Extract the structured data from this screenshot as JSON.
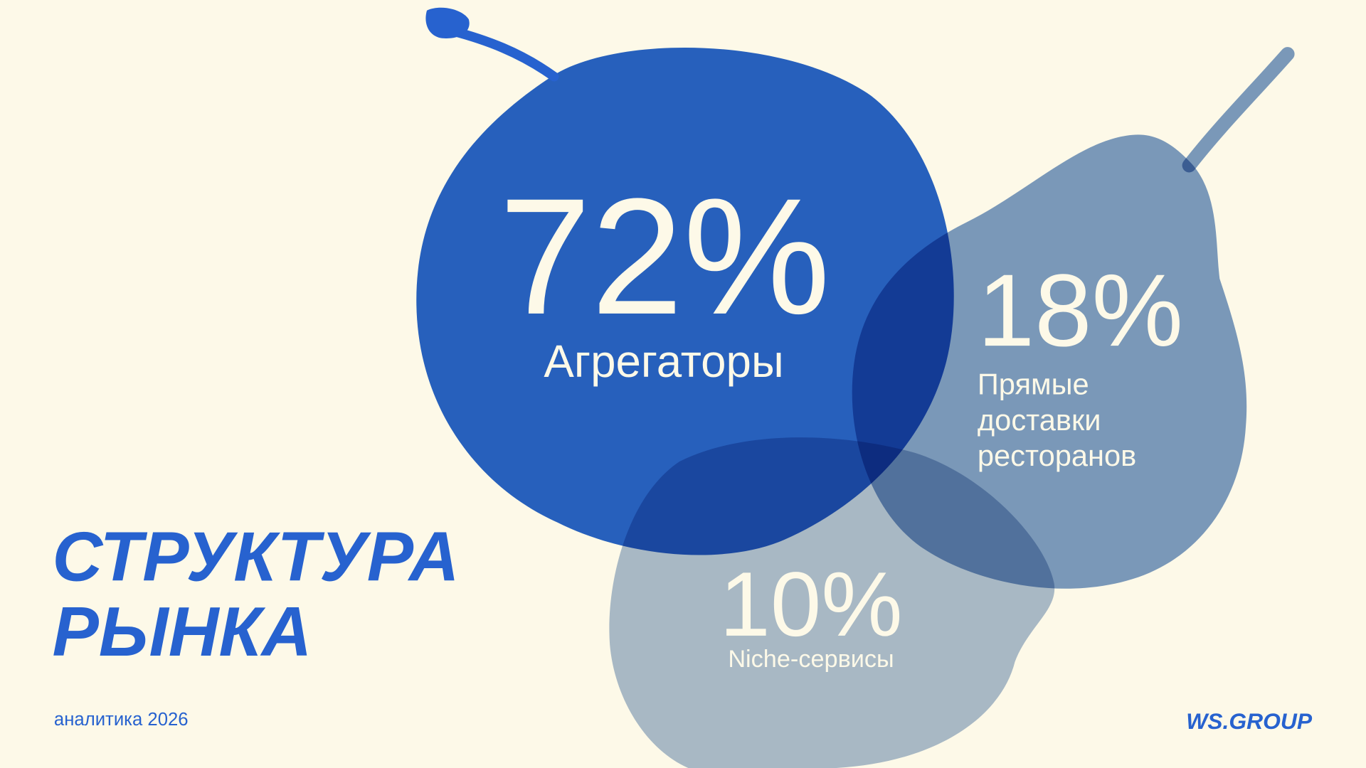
{
  "title": {
    "lines": [
      "СТРУКТУРА",
      "РЫНКА"
    ]
  },
  "footer": {
    "caption": "аналитика 2026",
    "brand": "WS.GROUP"
  },
  "segments": [
    {
      "value": "72%",
      "label": [
        "Агрегаторы"
      ]
    },
    {
      "value": "18%",
      "label": [
        "Прямые",
        "доставки",
        "ресторанов"
      ]
    },
    {
      "value": "10%",
      "label": [
        "Niche-сервисы"
      ]
    }
  ]
}
